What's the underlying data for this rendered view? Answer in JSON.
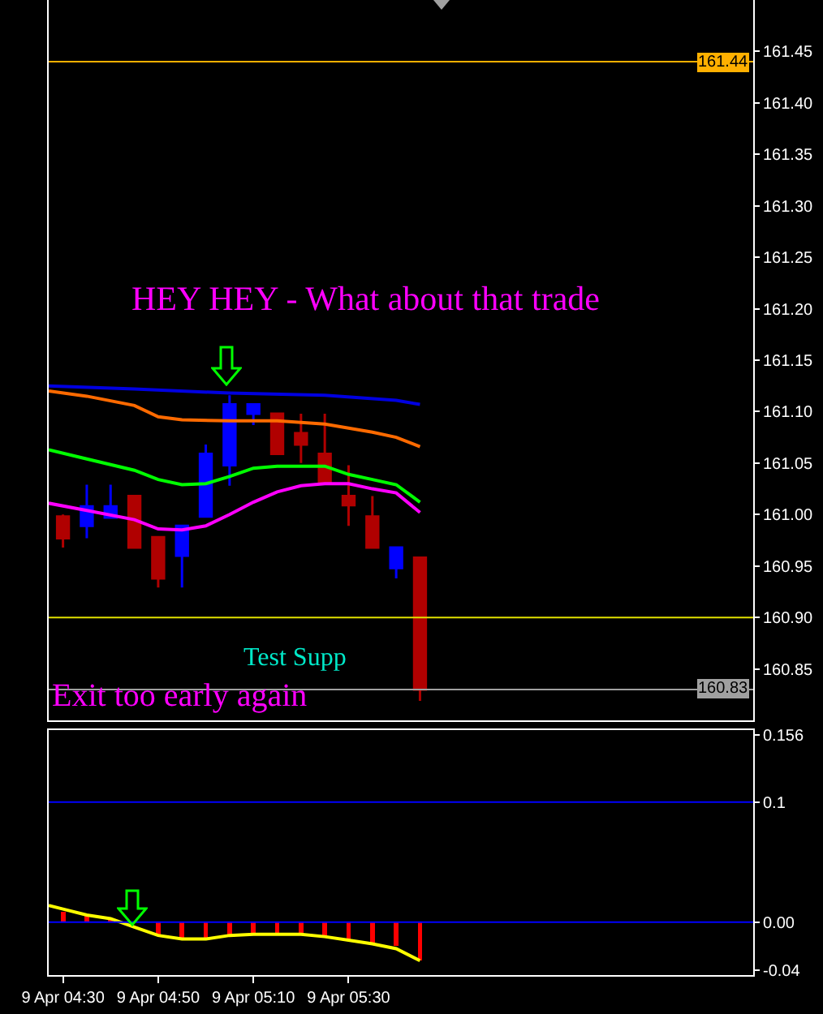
{
  "chart_data": [
    {
      "type": "candlestick",
      "title": null,
      "x": [
        "--04-09T04:30",
        "--04-09T04:35",
        "--04-09T04:40",
        "--04-09T04:45",
        "--04-09T04:50",
        "--04-09T04:55",
        "--04-09T05:00",
        "--04-09T05:05",
        "--04-09T05:10",
        "--04-09T05:15",
        "--04-09T05:20",
        "--04-09T05:25",
        "--04-09T05:30",
        "--04-09T05:35",
        "--04-09T05:40",
        "--04-09T05:45"
      ],
      "ohlc": [
        [
          160.998,
          161.0,
          160.968,
          160.977
        ],
        [
          160.989,
          161.029,
          160.977,
          161.008
        ],
        [
          160.997,
          161.029,
          160.997,
          161.008
        ],
        [
          161.018,
          161.018,
          160.968,
          160.968
        ],
        [
          160.978,
          160.978,
          160.929,
          160.938
        ],
        [
          160.96,
          160.989,
          160.929,
          160.989
        ],
        [
          160.998,
          161.068,
          160.998,
          161.059
        ],
        [
          161.048,
          161.116,
          161.028,
          161.107
        ],
        [
          161.098,
          161.107,
          161.087,
          161.107
        ],
        [
          161.098,
          161.098,
          161.059,
          161.059
        ],
        [
          161.079,
          161.098,
          161.05,
          161.068
        ],
        [
          161.059,
          161.098,
          161.031,
          161.031
        ],
        [
          161.018,
          161.048,
          160.989,
          161.009
        ],
        [
          160.998,
          161.018,
          160.968,
          160.968
        ],
        [
          160.948,
          160.968,
          160.938,
          160.968
        ],
        [
          160.958,
          160.958,
          160.819,
          160.83
        ]
      ],
      "colors": [
        "#b00000",
        "#0000ff",
        "#0000ff",
        "#b00000",
        "#b00000",
        "#0000ff",
        "#0000ff",
        "#0000ff",
        "#0000ff",
        "#b00000",
        "#b00000",
        "#b00000",
        "#b00000",
        "#b00000",
        "#0000ff",
        "#b00000"
      ],
      "series": [
        {
          "type": "line",
          "color": "#0000e0",
          "x": [
            "--04-09T04:27",
            "--04-09T04:45",
            "--04-09T05:05",
            "--04-09T05:25",
            "--04-09T05:40",
            "--04-09T05:45"
          ],
          "values": [
            161.125,
            161.122,
            161.118,
            161.116,
            161.111,
            161.107
          ]
        },
        {
          "type": "line",
          "color": "#ff6a00",
          "x": [
            "--04-09T04:27",
            "--04-09T04:35",
            "--04-09T04:45",
            "--04-09T04:50",
            "--04-09T04:55",
            "--04-09T05:05",
            "--04-09T05:15",
            "--04-09T05:25",
            "--04-09T05:35",
            "--04-09T05:40",
            "--04-09T05:45"
          ],
          "values": [
            161.12,
            161.115,
            161.106,
            161.095,
            161.092,
            161.091,
            161.091,
            161.088,
            161.08,
            161.075,
            161.066
          ]
        },
        {
          "type": "line",
          "color": "#00ff00",
          "x": [
            "--04-09T04:27",
            "--04-09T04:35",
            "--04-09T04:45",
            "--04-09T04:50",
            "--04-09T04:55",
            "--04-09T05:00",
            "--04-09T05:05",
            "--04-09T05:10",
            "--04-09T05:15",
            "--04-09T05:20",
            "--04-09T05:25",
            "--04-09T05:30",
            "--04-09T05:35",
            "--04-09T05:40",
            "--04-09T05:45"
          ],
          "values": [
            161.063,
            161.054,
            161.043,
            161.034,
            161.029,
            161.03,
            161.037,
            161.045,
            161.047,
            161.047,
            161.047,
            161.039,
            161.034,
            161.029,
            161.012
          ]
        },
        {
          "type": "line",
          "color": "#ff00ff",
          "x": [
            "--04-09T04:27",
            "--04-09T04:35",
            "--04-09T04:45",
            "--04-09T04:50",
            "--04-09T04:55",
            "--04-09T05:00",
            "--04-09T05:05",
            "--04-09T05:10",
            "--04-09T05:15",
            "--04-09T05:20",
            "--04-09T05:25",
            "--04-09T05:30",
            "--04-09T05:35",
            "--04-09T05:40",
            "--04-09T05:45"
          ],
          "values": [
            161.011,
            161.004,
            160.995,
            160.986,
            160.985,
            160.989,
            161.0,
            161.012,
            161.022,
            161.028,
            161.03,
            161.03,
            161.025,
            161.021,
            161.002
          ]
        }
      ],
      "xlim": [
        "--04-09T04:27",
        "--04-09T06:55"
      ],
      "ylim": [
        160.8,
        161.5
      ],
      "yticks": [
        161.45,
        {
          "value": 161.4,
          "label": "161.40"
        },
        161.35,
        {
          "value": 161.3,
          "label": "161.30"
        },
        161.25,
        {
          "value": 161.2,
          "label": "161.20"
        },
        161.15,
        {
          "value": 161.1,
          "label": "161.10"
        },
        161.05,
        {
          "value": 161.0,
          "label": "161.00"
        },
        160.95,
        {
          "value": 160.9,
          "label": "160.90"
        },
        160.85
      ],
      "ref_lines": [
        {
          "axis": "y",
          "value": 161.44,
          "label": "161.44",
          "color": "#ffb000"
        },
        {
          "axis": "y",
          "value": 160.9,
          "color": "#e0e000"
        },
        {
          "axis": "y",
          "value": 160.83,
          "label": "160.83",
          "color": "#a0a0a0"
        }
      ],
      "annotations": [
        "HEY HEY - What about that trade",
        "Test Supp",
        "Exit too early again"
      ],
      "tick_labels": "y",
      "grid": false
    },
    {
      "type": "bar",
      "x": [
        "--04-09T04:30",
        "--04-09T04:35",
        "--04-09T04:40",
        "--04-09T04:45",
        "--04-09T04:50",
        "--04-09T04:55",
        "--04-09T05:00",
        "--04-09T05:05",
        "--04-09T05:10",
        "--04-09T05:15",
        "--04-09T05:20",
        "--04-09T05:25",
        "--04-09T05:30",
        "--04-09T05:35",
        "--04-09T05:40",
        "--04-09T05:45"
      ],
      "series": [
        {
          "type": "bar",
          "color": "#ff0000",
          "values": [
            0.009,
            0.005,
            0.002,
            null,
            -0.011,
            -0.013,
            -0.013,
            -0.012,
            -0.009,
            -0.009,
            -0.009,
            -0.011,
            -0.014,
            -0.017,
            -0.02,
            -0.032
          ]
        },
        {
          "type": "line",
          "color": "#ffff00",
          "x": [
            "--04-09T04:27",
            "--04-09T04:30",
            "--04-09T04:35",
            "--04-09T04:40",
            "--04-09T04:45",
            "--04-09T04:50",
            "--04-09T04:55",
            "--04-09T05:00",
            "--04-09T05:05",
            "--04-09T05:10",
            "--04-09T05:15",
            "--04-09T05:20",
            "--04-09T05:25",
            "--04-09T05:30",
            "--04-09T05:35",
            "--04-09T05:40",
            "--04-09T05:45"
          ],
          "values": [
            0.014,
            0.011,
            0.006,
            0.003,
            -0.004,
            -0.011,
            -0.014,
            -0.014,
            -0.011,
            -0.01,
            -0.01,
            -0.01,
            -0.012,
            -0.015,
            -0.018,
            -0.022,
            -0.032
          ]
        }
      ],
      "xlim": [
        "--04-09T04:27",
        "--04-09T06:55"
      ],
      "xticks": [
        {
          "value": "--04-09T04:30",
          "label": "9 Apr 04:30"
        },
        {
          "value": "--04-09T04:50",
          "label": "9 Apr 04:50"
        },
        {
          "value": "--04-09T05:10",
          "label": "9 Apr 05:10"
        },
        {
          "value": "--04-09T05:30",
          "label": "9 Apr 05:30"
        }
      ],
      "ylim": [
        -0.044,
        0.16
      ],
      "yticks": [
        0.156,
        0.1,
        {
          "value": 0,
          "label": "0.00"
        },
        -0.04
      ],
      "ref_lines": [
        {
          "axis": "y",
          "value": 0.1,
          "color": "#0000ff"
        },
        {
          "axis": "y",
          "value": 0,
          "color": "#0000ff"
        }
      ],
      "grid": false
    }
  ]
}
